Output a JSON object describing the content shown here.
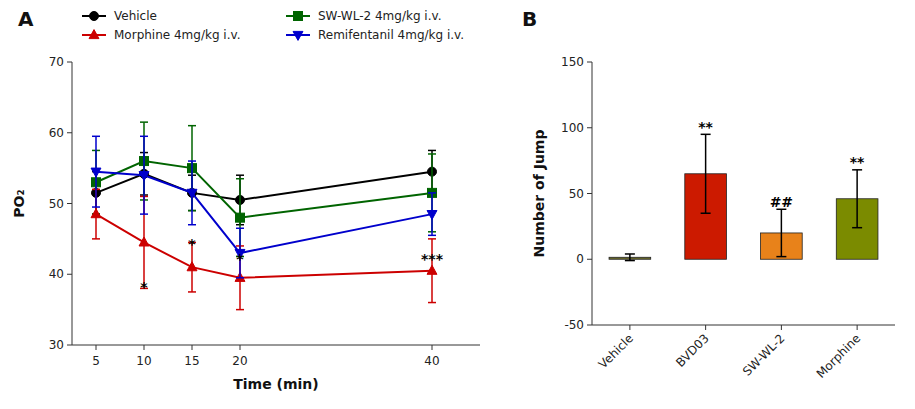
{
  "chart_data": [
    {
      "type": "line",
      "title": "A",
      "xlabel": "Time (min)",
      "ylabel": "PO₂",
      "x": [
        5,
        10,
        15,
        20,
        40
      ],
      "xlim": [
        2.5,
        45
      ],
      "xticks": [
        5,
        10,
        15,
        20,
        40
      ],
      "ylim": [
        30,
        70
      ],
      "yticks": [
        30,
        40,
        50,
        60,
        70
      ],
      "grid": false,
      "legend": "top",
      "series": [
        {
          "name": "Vehicle",
          "color": "#000000",
          "marker": "circle",
          "values": [
            51.5,
            54.2,
            51.5,
            50.5,
            54.5
          ],
          "errors": [
            3.0,
            3.0,
            2.5,
            3.5,
            3.0
          ]
        },
        {
          "name": "SW-WL-2 4mg/kg i.v.",
          "color": "#006400",
          "marker": "square",
          "values": [
            53.0,
            56.0,
            55.0,
            48.0,
            51.5
          ],
          "errors": [
            4.5,
            5.5,
            6.0,
            5.5,
            5.5
          ]
        },
        {
          "name": "Morphine 4mg/kg i.v.",
          "color": "#CC0000",
          "marker": "triangle-up",
          "values": [
            48.5,
            44.5,
            41.0,
            39.5,
            40.5
          ],
          "errors": [
            3.5,
            6.5,
            3.5,
            4.5,
            4.5
          ]
        },
        {
          "name": "Remifentanil 4mg/kg i.v.",
          "color": "#0000CC",
          "marker": "triangle-down",
          "values": [
            54.5,
            54.0,
            51.5,
            43.0,
            48.5
          ],
          "errors": [
            5.0,
            5.5,
            4.5,
            3.5,
            3.0
          ]
        }
      ],
      "annotations": [
        {
          "x": 10,
          "y": 37.5,
          "text": "*"
        },
        {
          "x": 15,
          "y": 43.5,
          "text": "*"
        },
        {
          "x": 20,
          "y": 41.5,
          "text": "*"
        },
        {
          "x": 40,
          "y": 41.5,
          "text": "***"
        }
      ]
    },
    {
      "type": "bar",
      "title": "B",
      "ylabel": "Number of Jump",
      "categories": [
        "Vehicle",
        "BVD03",
        "SW-WL-2",
        "Morphine"
      ],
      "values": [
        1.5,
        65.0,
        20.0,
        46.0
      ],
      "errors": [
        2.5,
        30.0,
        18.0,
        22.0
      ],
      "colors": [
        "#6B6B2A",
        "#CC1A00",
        "#E8821A",
        "#7B8B00"
      ],
      "ylim": [
        -50,
        150
      ],
      "yticks": [
        -50,
        0,
        50,
        100,
        150
      ],
      "grid": false,
      "annotations": [
        {
          "category": "BVD03",
          "y": 97,
          "text": "**"
        },
        {
          "category": "SW-WL-2",
          "y": 40,
          "text": "##"
        },
        {
          "category": "Morphine",
          "y": 70,
          "text": "**"
        }
      ]
    }
  ]
}
